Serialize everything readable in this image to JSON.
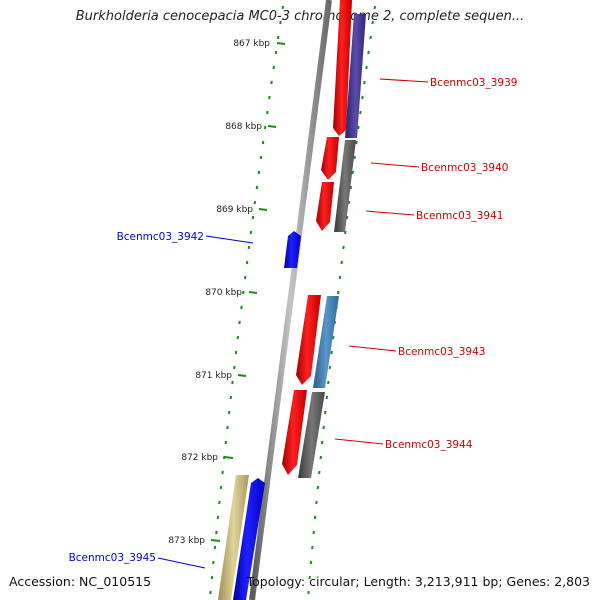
{
  "map": {
    "title": "Burkholderia cenocepacia MC0-3 chromosome 2, complete sequen...",
    "accession": "Accession: NC_010515",
    "summary": "Topology: circular; Length: 3,213,911 bp; Genes: 2,803"
  },
  "scale": {
    "ticks": [
      "867 kbp",
      "868 kbp",
      "869 kbp",
      "870 kbp",
      "871 kbp",
      "872 kbp",
      "873 kbp"
    ]
  },
  "genes": {
    "forward": [
      {
        "name": "Bcenmc03_3939",
        "color": "#cc0000"
      },
      {
        "name": "Bcenmc03_3940",
        "color": "#cc0000"
      },
      {
        "name": "Bcenmc03_3941",
        "color": "#cc0000"
      },
      {
        "name": "Bcenmc03_3943",
        "color": "#cc0000"
      },
      {
        "name": "Bcenmc03_3944",
        "color": "#cc0000"
      }
    ],
    "reverse": [
      {
        "name": "Bcenmc03_3942",
        "color": "#0000cc"
      },
      {
        "name": "Bcenmc03_3945",
        "color": "#0000cc"
      }
    ]
  },
  "colors": {
    "backbone": "#8a8a8a",
    "forward_gene": "#ff0000",
    "reverse_gene": "#0000ff",
    "cog_purple": "#4d3d99",
    "cog_gray": "#666666",
    "cog_steelblue": "#4682b4",
    "cog_khaki": "#c8b97a",
    "gc_skew": "#1a8a1a"
  }
}
